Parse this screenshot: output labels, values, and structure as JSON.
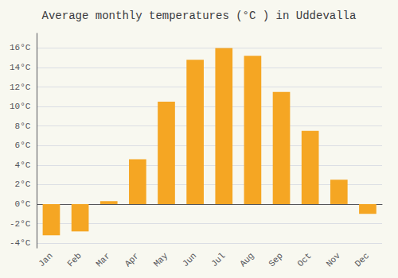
{
  "chart_data": {
    "type": "bar",
    "title": "Average monthly temperatures (°C ) in Uddevalla",
    "categories": [
      "Jan",
      "Feb",
      "Mar",
      "Apr",
      "May",
      "Jun",
      "Jul",
      "Aug",
      "Sep",
      "Oct",
      "Nov",
      "Dec"
    ],
    "values": [
      -3.2,
      -2.8,
      0.3,
      4.6,
      10.5,
      14.8,
      16.0,
      15.2,
      11.5,
      7.5,
      2.5,
      -1.0
    ],
    "color": "#F5A623",
    "ylim": [
      -4.5,
      17.5
    ],
    "yticks": [
      {
        "value": -4,
        "label": "-4°C"
      },
      {
        "value": -2,
        "label": "-2°C"
      },
      {
        "value": 0,
        "label": "0°C"
      },
      {
        "value": 2,
        "label": "2°C"
      },
      {
        "value": 4,
        "label": "4°C"
      },
      {
        "value": 6,
        "label": "6°C"
      },
      {
        "value": 8,
        "label": "8°C"
      },
      {
        "value": 10,
        "label": "10°C"
      },
      {
        "value": 12,
        "label": "12°C"
      },
      {
        "value": 14,
        "label": "14°C"
      },
      {
        "value": 16,
        "label": "16°C"
      }
    ],
    "grid": true
  }
}
